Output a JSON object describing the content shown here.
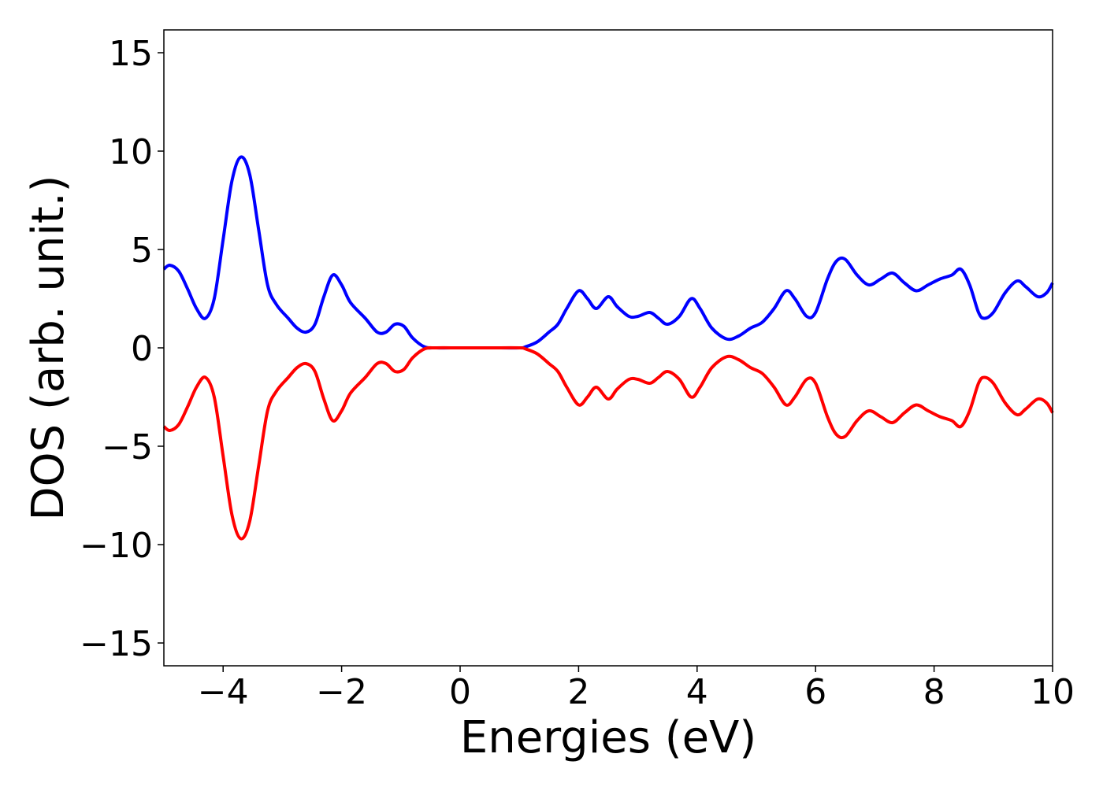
{
  "chart_data": {
    "type": "line",
    "xlabel": "Energies (eV)",
    "ylabel": "DOS (arb. unit.)",
    "x": [
      -5,
      -4.9,
      -4.75,
      -4.6,
      -4.45,
      -4.3,
      -4.15,
      -4.0,
      -3.85,
      -3.7,
      -3.55,
      -3.4,
      -3.25,
      -3.1,
      -2.9,
      -2.75,
      -2.6,
      -2.45,
      -2.3,
      -2.15,
      -2.0,
      -1.85,
      -1.6,
      -1.4,
      -1.25,
      -1.1,
      -0.95,
      -0.8,
      -0.6,
      -0.4,
      0,
      0.5,
      1.0,
      1.1,
      1.3,
      1.5,
      1.65,
      1.8,
      2.0,
      2.15,
      2.3,
      2.5,
      2.65,
      2.85,
      3.0,
      3.2,
      3.35,
      3.5,
      3.7,
      3.9,
      4.05,
      4.25,
      4.5,
      4.7,
      4.9,
      5.1,
      5.3,
      5.5,
      5.65,
      5.85,
      6.0,
      6.2,
      6.35,
      6.5,
      6.7,
      6.9,
      7.1,
      7.3,
      7.5,
      7.7,
      7.9,
      8.1,
      8.3,
      8.45,
      8.6,
      8.75,
      8.85,
      9.0,
      9.2,
      9.4,
      9.55,
      9.75,
      9.9,
      10.0
    ],
    "series": [
      {
        "color": "#0000ff",
        "values": [
          4.0,
          4.2,
          3.9,
          3.0,
          2.0,
          1.5,
          2.5,
          5.5,
          8.5,
          9.7,
          8.8,
          6.0,
          3.2,
          2.2,
          1.5,
          1.0,
          0.8,
          1.2,
          2.6,
          3.7,
          3.2,
          2.3,
          1.5,
          0.8,
          0.8,
          1.2,
          1.1,
          0.5,
          0.05,
          0,
          0,
          0,
          0,
          0.05,
          0.3,
          0.8,
          1.2,
          2.0,
          2.9,
          2.5,
          2.0,
          2.6,
          2.1,
          1.6,
          1.6,
          1.8,
          1.5,
          1.2,
          1.6,
          2.5,
          2.0,
          1.0,
          0.45,
          0.6,
          1.0,
          1.3,
          2.0,
          2.9,
          2.5,
          1.6,
          1.8,
          3.5,
          4.4,
          4.5,
          3.7,
          3.2,
          3.5,
          3.8,
          3.3,
          2.9,
          3.2,
          3.5,
          3.7,
          4.0,
          3.2,
          1.8,
          1.5,
          1.8,
          2.8,
          3.4,
          3.1,
          2.6,
          2.8,
          3.3
        ]
      },
      {
        "color": "#ff0000",
        "values": [
          -4.0,
          -4.2,
          -3.9,
          -3.0,
          -2.0,
          -1.5,
          -2.5,
          -5.5,
          -8.5,
          -9.7,
          -8.8,
          -6.0,
          -3.2,
          -2.2,
          -1.5,
          -1.0,
          -0.8,
          -1.2,
          -2.6,
          -3.7,
          -3.2,
          -2.3,
          -1.5,
          -0.8,
          -0.8,
          -1.2,
          -1.1,
          -0.5,
          -0.05,
          0,
          0,
          0,
          0,
          -0.05,
          -0.3,
          -0.8,
          -1.2,
          -2.0,
          -2.9,
          -2.5,
          -2.0,
          -2.6,
          -2.1,
          -1.6,
          -1.6,
          -1.8,
          -1.5,
          -1.2,
          -1.6,
          -2.5,
          -2.0,
          -1.0,
          -0.45,
          -0.6,
          -1.0,
          -1.3,
          -2.0,
          -2.9,
          -2.5,
          -1.6,
          -1.8,
          -3.5,
          -4.4,
          -4.5,
          -3.7,
          -3.2,
          -3.5,
          -3.8,
          -3.3,
          -2.9,
          -3.2,
          -3.5,
          -3.7,
          -4.0,
          -3.2,
          -1.8,
          -1.5,
          -1.8,
          -2.8,
          -3.4,
          -3.1,
          -2.6,
          -2.8,
          -3.3
        ]
      }
    ],
    "xlim": [
      -5,
      10
    ],
    "xticks": [
      {
        "value": -4,
        "label": "−4"
      },
      {
        "value": -2,
        "label": "−2"
      },
      0,
      2,
      4,
      6,
      8,
      10
    ],
    "ylim": [
      -16.16,
      16.16
    ],
    "yticks": [
      {
        "value": -15,
        "label": "−15"
      },
      {
        "value": -10,
        "label": "−10"
      },
      {
        "value": -5,
        "label": "−5"
      },
      0,
      5,
      10,
      15
    ]
  }
}
